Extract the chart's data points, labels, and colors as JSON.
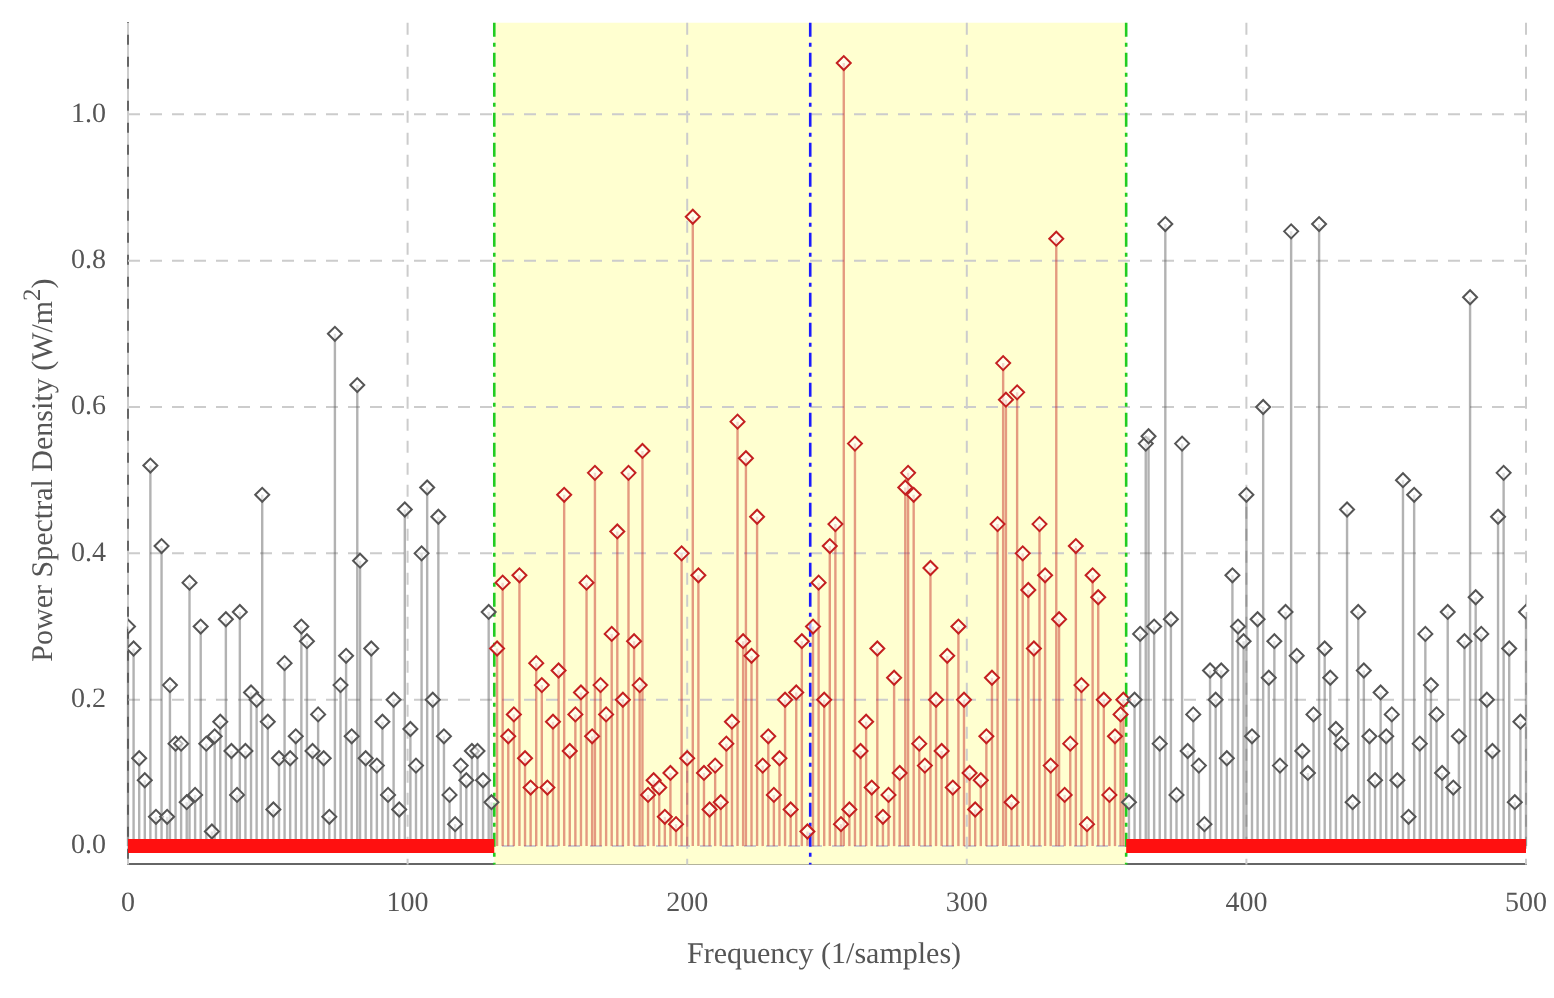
{
  "chart_data": {
    "type": "lollipop",
    "xlabel": "Frequency (1/samples)",
    "ylabel": "Power Spectral Density (W/m$^{2}$)",
    "xlim": [
      0,
      500
    ],
    "ylim": [
      -0.025,
      1.125
    ],
    "xticks": [
      0,
      100,
      200,
      300,
      400,
      500
    ],
    "yticks": [
      {
        "value": 0,
        "label": "0.0"
      },
      {
        "value": 0.2,
        "label": "0.2"
      },
      {
        "value": 0.4,
        "label": "0.4"
      },
      {
        "value": 0.6,
        "label": "0.6"
      },
      {
        "value": 0.8,
        "label": "0.8"
      },
      {
        "value": 1,
        "label": "1.0"
      }
    ],
    "grid": true,
    "legend": false,
    "marker": "diamond",
    "bands": [
      {
        "axis": "x",
        "from": 131,
        "to": 357,
        "color": "#ffffd0"
      }
    ],
    "ref_lines": [
      {
        "axis": "x",
        "value": 131,
        "color": "#22cc22",
        "line_style": "dashed"
      },
      {
        "axis": "x",
        "value": 357,
        "color": "#22cc22",
        "line_style": "dashed"
      },
      {
        "axis": "x",
        "value": 244,
        "color": "#1a1aff",
        "line_style": "dashed"
      }
    ],
    "series": [
      {
        "color": "#555555",
        "x": [
          0,
          2,
          4,
          6,
          8,
          10,
          12,
          14,
          15,
          17,
          19,
          21,
          22,
          24,
          26,
          28,
          30,
          31,
          33,
          35,
          37,
          39,
          40,
          42,
          44,
          46,
          48,
          50,
          52,
          54,
          56,
          58,
          60,
          62,
          64,
          66,
          68,
          70,
          72,
          74,
          76,
          78,
          80,
          82,
          83,
          85,
          87,
          89,
          91,
          93,
          95,
          97,
          99,
          101,
          103,
          105,
          107,
          109,
          111,
          113,
          115,
          117,
          119,
          121,
          123,
          125,
          127,
          129,
          130,
          358,
          360,
          362,
          364,
          365,
          367,
          369,
          371,
          373,
          375,
          377,
          379,
          381,
          383,
          385,
          387,
          389,
          391,
          393,
          395,
          397,
          399,
          400,
          402,
          404,
          406,
          408,
          410,
          412,
          414,
          416,
          418,
          420,
          422,
          424,
          426,
          428,
          430,
          432,
          434,
          436,
          438,
          440,
          442,
          444,
          446,
          448,
          450,
          452,
          454,
          456,
          458,
          460,
          462,
          464,
          466,
          468,
          470,
          472,
          474,
          476,
          478,
          480,
          482,
          484,
          486,
          488,
          490,
          492,
          494,
          496,
          498,
          500
        ],
        "values": [
          0.3,
          0.27,
          0.12,
          0.09,
          0.52,
          0.04,
          0.41,
          0.04,
          0.22,
          0.14,
          0.14,
          0.06,
          0.36,
          0.07,
          0.3,
          0.14,
          0.02,
          0.15,
          0.17,
          0.31,
          0.13,
          0.07,
          0.32,
          0.13,
          0.21,
          0.2,
          0.48,
          0.17,
          0.05,
          0.12,
          0.25,
          0.12,
          0.15,
          0.3,
          0.28,
          0.13,
          0.18,
          0.12,
          0.04,
          0.7,
          0.22,
          0.26,
          0.15,
          0.63,
          0.39,
          0.12,
          0.27,
          0.11,
          0.17,
          0.07,
          0.2,
          0.05,
          0.46,
          0.16,
          0.11,
          0.4,
          0.49,
          0.2,
          0.45,
          0.15,
          0.07,
          0.03,
          0.11,
          0.09,
          0.13,
          0.13,
          0.09,
          0.32,
          0.06,
          0.06,
          0.2,
          0.29,
          0.55,
          0.56,
          0.3,
          0.14,
          0.85,
          0.31,
          0.07,
          0.55,
          0.13,
          0.18,
          0.11,
          0.03,
          0.24,
          0.2,
          0.24,
          0.12,
          0.37,
          0.3,
          0.28,
          0.48,
          0.15,
          0.31,
          0.6,
          0.23,
          0.28,
          0.11,
          0.32,
          0.84,
          0.26,
          0.13,
          0.1,
          0.18,
          0.85,
          0.27,
          0.23,
          0.16,
          0.14,
          0.46,
          0.06,
          0.32,
          0.24,
          0.15,
          0.09,
          0.21,
          0.15,
          0.18,
          0.09,
          0.5,
          0.04,
          0.48,
          0.14,
          0.29,
          0.22,
          0.18,
          0.1,
          0.32,
          0.08,
          0.15,
          0.28,
          0.75,
          0.34,
          0.29,
          0.2,
          0.13,
          0.45,
          0.51,
          0.27,
          0.06,
          0.17,
          0.32
        ]
      },
      {
        "color": "#c42020",
        "x": [
          132,
          134,
          136,
          138,
          140,
          142,
          144,
          146,
          148,
          150,
          152,
          154,
          156,
          158,
          160,
          162,
          164,
          166,
          167,
          169,
          171,
          173,
          175,
          177,
          179,
          181,
          183,
          184,
          186,
          188,
          190,
          192,
          194,
          196,
          198,
          200,
          202,
          204,
          206,
          208,
          210,
          212,
          214,
          216,
          218,
          220,
          221,
          223,
          225,
          227,
          229,
          231,
          233,
          235,
          237,
          239,
          241,
          243,
          245,
          247,
          249,
          251,
          253,
          255,
          256,
          258,
          260,
          262,
          264,
          266,
          268,
          270,
          272,
          274,
          276,
          278,
          279,
          281,
          283,
          285,
          287,
          289,
          291,
          293,
          295,
          297,
          299,
          301,
          303,
          305,
          307,
          309,
          311,
          313,
          314,
          316,
          318,
          320,
          322,
          324,
          326,
          328,
          330,
          332,
          333,
          335,
          337,
          339,
          341,
          343,
          345,
          347,
          349,
          351,
          353,
          355,
          356
        ],
        "values": [
          0.27,
          0.36,
          0.15,
          0.18,
          0.37,
          0.12,
          0.08,
          0.25,
          0.22,
          0.08,
          0.17,
          0.24,
          0.48,
          0.13,
          0.18,
          0.21,
          0.36,
          0.15,
          0.51,
          0.22,
          0.18,
          0.29,
          0.43,
          0.2,
          0.51,
          0.28,
          0.22,
          0.54,
          0.07,
          0.09,
          0.08,
          0.04,
          0.1,
          0.03,
          0.4,
          0.12,
          0.86,
          0.37,
          0.1,
          0.05,
          0.11,
          0.06,
          0.14,
          0.17,
          0.58,
          0.28,
          0.53,
          0.26,
          0.45,
          0.11,
          0.15,
          0.07,
          0.12,
          0.2,
          0.05,
          0.21,
          0.28,
          0.02,
          0.3,
          0.36,
          0.2,
          0.41,
          0.44,
          0.03,
          1.07,
          0.05,
          0.55,
          0.13,
          0.17,
          0.08,
          0.27,
          0.04,
          0.07,
          0.23,
          0.1,
          0.49,
          0.51,
          0.48,
          0.14,
          0.11,
          0.38,
          0.2,
          0.13,
          0.26,
          0.08,
          0.3,
          0.2,
          0.1,
          0.05,
          0.09,
          0.15,
          0.23,
          0.44,
          0.66,
          0.61,
          0.06,
          0.62,
          0.4,
          0.35,
          0.27,
          0.44,
          0.37,
          0.11,
          0.83,
          0.31,
          0.07,
          0.14,
          0.41,
          0.22,
          0.03,
          0.37,
          0.34,
          0.2,
          0.07,
          0.15,
          0.18,
          0.2
        ]
      },
      {
        "type": "line",
        "marker": "none",
        "color": "#ff1010",
        "x": [
          0,
          131,
          244,
          357,
          500
        ],
        "values": [
          0,
          0,
          null,
          0,
          0
        ]
      }
    ]
  }
}
